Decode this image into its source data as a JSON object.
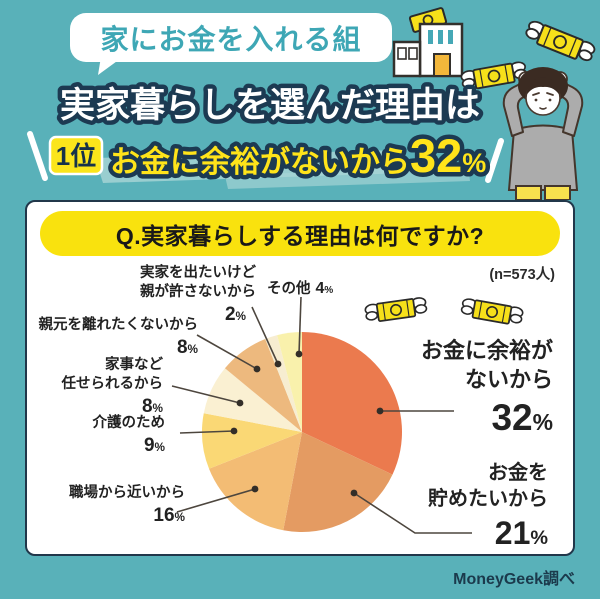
{
  "colors": {
    "background": "#59B1B9",
    "navy": "#1C3A52",
    "banner_yellow": "#F9E20E",
    "title_yellow": "#FFE41A",
    "bubble_text_teal": "#3EA7B5",
    "card_border": "#21374A"
  },
  "header": {
    "badge": "家にお金を入れる組",
    "title_line1": "実家暮らしを選んだ理由は",
    "rank_badge": "1位",
    "title_line2_text": "お金に余裕がないから",
    "title_line2_value": "32",
    "title_line2_unit": "%"
  },
  "icons": {
    "house": "house-money-icon",
    "bill": "winged-money-icon",
    "person": "worried-person-icon"
  },
  "card": {
    "question": "Q.実家暮らしする理由は何ですか?",
    "sample_note": "(n=573人)"
  },
  "chart_data": {
    "type": "pie",
    "title": "Q.実家暮らしする理由は何ですか?",
    "sample_size": "n=573人",
    "start_angle_deg": 0,
    "direction": "clockwise",
    "slices": [
      {
        "label": "お金に余裕がないから",
        "value": 32,
        "color": "#EB7A4E"
      },
      {
        "label": "お金を貯めたいから",
        "value": 21,
        "color": "#E49B62"
      },
      {
        "label": "職場から近いから",
        "value": 16,
        "color": "#F3BC74"
      },
      {
        "label": "介護のため",
        "value": 9,
        "color": "#FAD875"
      },
      {
        "label": "家事など任せられるから",
        "value": 8,
        "color": "#FAF0D2"
      },
      {
        "label": "親元を離れたくないから",
        "value": 8,
        "color": "#EDB97E"
      },
      {
        "label": "実家を出たいけど親が許さないから",
        "value": 2,
        "color": "#F7EDD1"
      },
      {
        "label": "その他",
        "value": 4,
        "color": "#F9F1AC"
      }
    ]
  },
  "callouts": {
    "money_no_room": {
      "line1": "お金に余裕が",
      "line2": "ないから",
      "value": "32",
      "unit": "%"
    },
    "save_money": {
      "line1": "お金を",
      "line2": "貯めたいから",
      "value": "21",
      "unit": "%"
    },
    "near_work": {
      "line1": "職場から近いから",
      "value": "16",
      "unit": "%"
    },
    "caregiving": {
      "line1": "介護のため",
      "value": "9",
      "unit": "%"
    },
    "housework": {
      "line1": "家事など",
      "line2": "任せられるから",
      "value": "8",
      "unit": "%"
    },
    "stay_parents": {
      "line1": "親元を離れたくないから",
      "value": "8",
      "unit": "%"
    },
    "not_allowed": {
      "line1": "実家を出たいけど",
      "line2": "親が許さないから",
      "value": "2",
      "unit": "%"
    },
    "other": {
      "line1": "その他",
      "value": "4",
      "unit": "%"
    }
  },
  "footer": {
    "credit": "MoneyGeek調べ"
  }
}
